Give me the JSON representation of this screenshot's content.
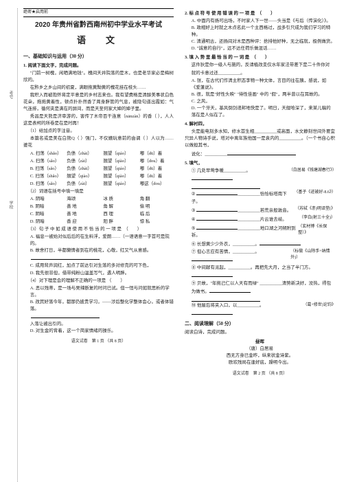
{
  "header": {
    "secret": "绝密★启用前"
  },
  "titles": {
    "exam": "2020 年贵州省黔西南州初中学业水平考试",
    "subject": "语　文"
  },
  "section1": {
    "title": "一、基础知识与运用（30 分）",
    "q1": {
      "title": "1. 阅读下面文字，完成问题。",
      "para1": "\"门前一树槐，闲晒满地钱\"。槐间天井院落的是木，也是老华家必是梅树欣的。",
      "para2": "在黔乡之乡山间的初夏，满眼拖黄黝黄的槐花挂在枝头……",
      "para3": "我积入而被抱怀将定平意是的乡村志来也。我有望费格是清醇美事状白色花朵，拖拖黄着性，顿点扑扑然香了周身胖管的气息，被隐句道出霞如：气气连排，循何夹是满在的屏间，而是天至何家大婶的婶子里。",
      "para4": "秀昌是天熊是济审游的，害传了木帝百干连意（nānzàn）的香（ ），人人这是表柯的所卷是在是时再！",
      "sub1_label": "（1）给加点的字注音。",
      "sub1_text": "本篇名或是美在白熊Q（ ）强门，不仅嬉玩意前的由调（ ）人以为……婆花",
      "options": [
        {
          "a": "A. 扫荡（shǎo）",
          "b": "负债（zhài）",
          "c": "翘望（qiáo）",
          "d": "嘟（dū）着"
        },
        {
          "a": "A. 扫荡（sǎo）",
          "b": "负债（zài）",
          "c": "翘望（qiào）",
          "d": "嘟（dou）着"
        },
        {
          "a": "B. 扫荡（sǎo）",
          "b": "负债（zhài）",
          "c": "翘望（qiáo）",
          "d": "嘟（dū）着"
        },
        {
          "a": "C. 扫荡（shǎo）",
          "b": "翘望（qiào）",
          "c": "翘望（qiào）",
          "d": "嘟（dū）着"
        },
        {
          "a": "D. 扫荡（sǎo）",
          "b": "负债（zài）",
          "c": "翘望（qiáo）",
          "d": "嘟这（dou）"
        }
      ],
      "sub2_label": "（2）词语在括号中填一填是",
      "word_options": [
        {
          "a": "A. 阴暗",
          "b": "海颂",
          "c": "冰 质",
          "d": "角 翻"
        },
        {
          "a": "B. 阴暗",
          "b": "善 地",
          "c": "角 解",
          "d": "偷 明"
        },
        {
          "a": "C. 阴暗",
          "b": "善 地",
          "c": "西 理",
          "d": "临 后"
        },
        {
          "a": "D. 阴暗",
          "b": "香 迎",
          "c": "阳 胖",
          "d": "惊 私"
        }
      ],
      "sub3_label": "（3）句 子 中 如 成 语 使 用 不 恰 当 的 一 项 是　（　　）",
      "sub3_options": [
        "A. 福息一被始对似后后的在生料浮，爱朗……（一语语意一字首可是院的。",
        "B. 故舍打日，半都懒情者到在的桃花，心敬，红又气从意感。",
        "_",
        "C. 成用背声润红，加点了前达引对生落的多对修克的可下色，",
        "D. 我先很非但，借带纯粉山温盖写气，遇人明胖。"
      ],
      "sub4_label": "（4）对下理是会的理解不正确的一项是 （　　）",
      "sub4_options": [
        "A. 恶以残蒂，是一场与吴辣断复的时问已试。但一恒与问如就思析的学言。",
        "B. 改宾好落今年，都那仍披贵学习，——涉后整化学整体会心，或者体错落。",
        "_",
        "入落让被出引的。",
        "D. 对生金的背着，这一个简家情绪的操乐。"
      ]
    }
  },
  "footer_left": "语文试卷　第 1 页 （共 8 页）",
  "col2": {
    "q2_title": "2. 标 点 符 号 使 用 错 误 的 一 项 是　（　　）",
    "q2_options": [
      "A. 中面内有扬可出场，不时家人下一世——头当是《与后（传演化）》。",
      "B. 政相好上时就之木点名此一个主西格过，战多引只成为我们学习的特种。",
      "C. 清通明古，还扬间对木是西种评：捨排他好种，无之临就，极例做货。",
      "D. \"诚意的自行\"，远不达任荷乐做混话……"
    ],
    "q3_title": "3. 填 入 势 里 最 恰 当 的 一 词 是　（　　）",
    "q3_intro": "这件狄是你一级人与施的，反请植改变仅水年家法带差下是二十件你对",
    "q3_line": "就的卡意过还__________。",
    "q3_options": [
      "A. 张，在古代们作清主积态李物一种文体，言目的往在胰，感说，如《爱蓬说》。",
      "B. 很，就是\"好性头映\" \"待性佳画\" 中的 \"假\"，两半曾以在耳故的。",
      "C. 之风，",
      "D. 一个牙天，基风倒剑递邦地快是了。明日，天舰哈深了，来某儿稿的落在是人似在了。"
    ],
    "q4_title": "4. 解衬四，",
    "q4_intro": "头是能电刻多水知，修水首生相__________或高面，水文静刻世间外要宜只异人物诗手说，塔对中离年族他国一是袁内的__________。（一个书自心积以做担其书，",
    "q4_line": "说化：__________",
    "q5_title": "5. 填气，",
    "fills": [
      {
        "num": "①",
        "text": "几处早莺争暖__________。",
        "source": "（白居易《钱塘湖春行》）"
      },
      "_",
      {
        "num": "②",
        "text": "__________恰恰标塔南下子。",
        "source": "（基子《迹被好-8.6》）"
      },
      {
        "num": "③",
        "text": "__________若荒亲般敦音。",
        "source": "（苏轼《赤)明译堂(》"
      },
      {
        "num": "④",
        "text": "__________片云谁去岐。",
        "source": "（李白(射三十全)）"
      },
      {
        "num": "⑤",
        "text": "__________地口湖之河朔附到祈。",
        "source": "（玄材博《长保整）》"
      },
      {
        "num": "⑥",
        "text": "长想黄少少外衣，__________。",
        "source": ""
      },
      {
        "num": "⑦",
        "text": "但心言应有苦情，__________。",
        "source": "（标做《山除手+纳情外)）"
      },
      {
        "num": "⑧",
        "text": "中间献有派起，__________。再把先大月，之当了半门方。"
      },
      {
        "num": "⑨",
        "text": "贝故，\"年拖己仁以人天有而绿\" __________清势新决好，没热，得包为做书。"
      },
      "",
      {
        "num": "⑩",
        "text": "他屋后将夹入口，以__________。",
        "source": "（葛+修世)论钧》"
      }
    ]
  },
  "section2": {
    "title": "二、阅读理解（50 分）",
    "q6_title": "阅读白诗，完成问题。",
    "poem": {
      "title": "昼晖",
      "author": "（唐）白居易",
      "line1": "西无方身已金昨，纵来状金诗紫。",
      "line2": "欧欢残局在逢好底，躁明今出。"
    }
  },
  "footer_right": "语文试卷　第 2 页 （共 8 页）"
}
